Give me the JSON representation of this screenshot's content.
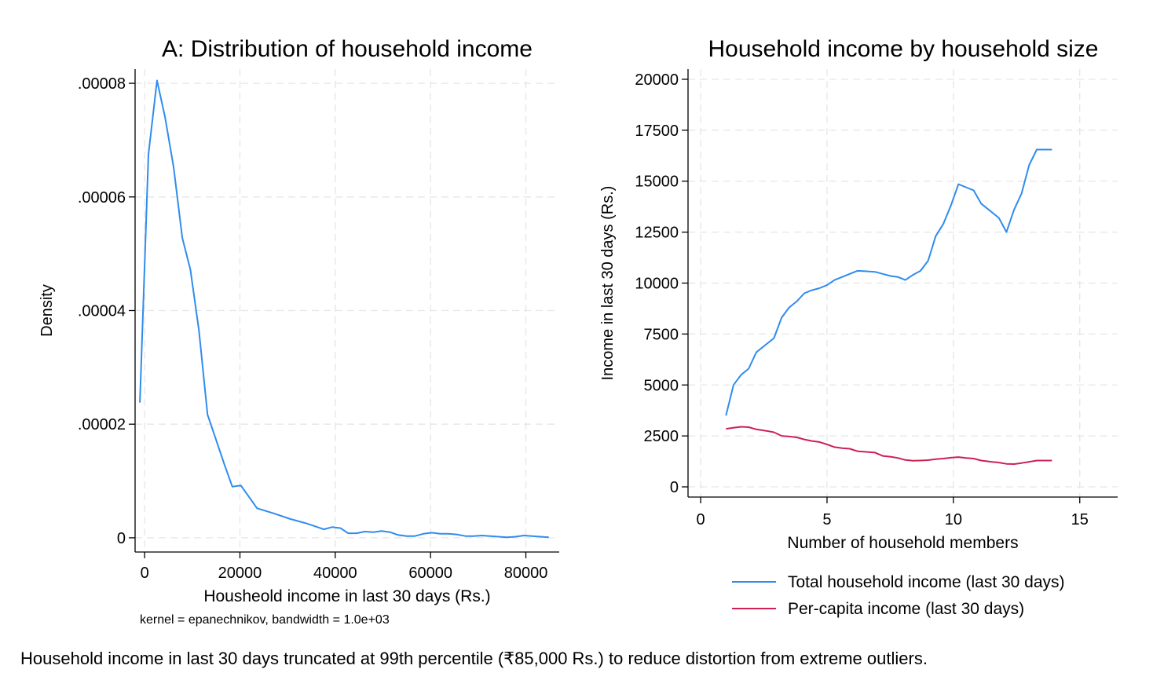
{
  "figure_note": "Household income in last 30 days truncated at 99th percentile  (₹85,000 Rs.) to reduce distortion from extreme outliers.",
  "colors": {
    "blue": "#2f8cee",
    "red": "#cc2155",
    "grid": "#e6e6e6",
    "axis": "#000000"
  },
  "chart_data": [
    {
      "type": "line",
      "title": "A: Distribution of household income",
      "xlabel": "Housheold income in last 30 days (Rs.)",
      "ylabel": "Density",
      "note": "kernel = epanechnikov, bandwidth =  1.0e+03",
      "xlim": [
        -2000,
        87000
      ],
      "ylim": [
        -2.5e-06,
        8.25e-05
      ],
      "x_ticks": [
        0,
        20000,
        40000,
        60000,
        80000
      ],
      "x_tick_labels": [
        "0",
        "20000",
        "40000",
        "60000",
        "80000"
      ],
      "y_ticks": [
        0,
        2e-05,
        4e-05,
        6e-05,
        8e-05
      ],
      "y_tick_labels": [
        "0",
        ".00002",
        ".00004",
        ".00006",
        ".00008"
      ],
      "grid": true,
      "series": [
        {
          "color": "#2f8cee",
          "x": [
            -1000,
            800,
            2600,
            4300,
            6100,
            7900,
            9600,
            11400,
            13200,
            14900,
            16700,
            18400,
            20200,
            23600,
            27100,
            30600,
            34100,
            37600,
            39400,
            41100,
            42700,
            44500,
            46200,
            48000,
            49700,
            51500,
            53200,
            55000,
            56700,
            58500,
            60300,
            62000,
            63700,
            65500,
            67300,
            69000,
            70800,
            72500,
            74300,
            76000,
            77800,
            79600,
            81300,
            83100,
            84800
          ],
          "y": [
            2.38e-05,
            6.75e-05,
            8.05e-05,
            7.4e-05,
            6.52e-05,
            5.28e-05,
            4.72e-05,
            3.65e-05,
            2.17e-05,
            1.75e-05,
            1.3e-05,
            9e-06,
            9.2e-06,
            5.2e-06,
            4.3e-06,
            3.3e-06,
            2.5e-06,
            1.5e-06,
            1.9e-06,
            1.7e-06,
            8e-07,
            8e-07,
            1.1e-06,
            1e-06,
            1.2e-06,
            1e-06,
            5e-07,
            3e-07,
            3e-07,
            7e-07,
            9e-07,
            7e-07,
            7e-07,
            6e-07,
            3e-07,
            3e-07,
            4e-07,
            3e-07,
            2e-07,
            1e-07,
            2e-07,
            4e-07,
            3e-07,
            2e-07,
            1e-07
          ]
        }
      ]
    },
    {
      "type": "line",
      "title": "Household income by household size",
      "xlabel": "Number of household members",
      "ylabel": "Income in last 30 days (Rs.)",
      "xlim": [
        -0.5,
        16.5
      ],
      "ylim": [
        -500,
        20500
      ],
      "x_ticks": [
        0,
        5,
        10,
        15
      ],
      "x_tick_labels": [
        "0",
        "5",
        "10",
        "15"
      ],
      "y_ticks": [
        0,
        2500,
        5000,
        7500,
        10000,
        12500,
        15000,
        17500,
        20000
      ],
      "y_tick_labels": [
        "0",
        "2500",
        "5000",
        "7500",
        "10000",
        "12500",
        "15000",
        "17500",
        "20000"
      ],
      "grid": true,
      "legend_position": "bottom",
      "series": [
        {
          "name": "Total household income (last 30 days)",
          "color": "#2f8cee",
          "x": [
            1,
            1.3,
            1.6,
            1.9,
            2.2,
            2.6,
            2.9,
            3.2,
            3.5,
            3.8,
            4.1,
            4.4,
            4.7,
            5,
            5.3,
            5.6,
            5.9,
            6.2,
            6.5,
            6.9,
            7.2,
            7.5,
            7.8,
            8.1,
            8.4,
            8.7,
            9,
            9.3,
            9.6,
            9.9,
            10.2,
            10.5,
            10.8,
            11.1,
            11.5,
            11.8,
            12.1,
            12.4,
            12.7,
            13,
            13.3,
            13.6,
            13.9
          ],
          "y": [
            3500,
            5000,
            5500,
            5800,
            6600,
            7000,
            7300,
            8300,
            8800,
            9100,
            9500,
            9650,
            9750,
            9900,
            10150,
            10300,
            10450,
            10600,
            10580,
            10550,
            10450,
            10350,
            10300,
            10150,
            10400,
            10600,
            11100,
            12300,
            12900,
            13800,
            14850,
            14700,
            14550,
            13900,
            13500,
            13200,
            12500,
            13600,
            14400,
            15800,
            16550,
            16550,
            16550
          ]
        },
        {
          "name": "Per-capita income (last 30 days)",
          "color": "#cc2155",
          "x": [
            1,
            1.3,
            1.6,
            1.9,
            2.2,
            2.6,
            2.9,
            3.2,
            3.5,
            3.8,
            4.1,
            4.4,
            4.7,
            5,
            5.3,
            5.6,
            5.9,
            6.2,
            6.5,
            6.9,
            7.2,
            7.5,
            7.8,
            8.1,
            8.4,
            8.7,
            9,
            9.3,
            9.6,
            9.9,
            10.2,
            10.5,
            10.8,
            11.1,
            11.5,
            11.8,
            12.1,
            12.4,
            12.7,
            13,
            13.3,
            13.6,
            13.9
          ],
          "y": [
            2850,
            2900,
            2950,
            2930,
            2820,
            2750,
            2680,
            2500,
            2470,
            2430,
            2330,
            2250,
            2200,
            2080,
            1950,
            1900,
            1870,
            1750,
            1720,
            1680,
            1520,
            1480,
            1420,
            1320,
            1280,
            1290,
            1310,
            1360,
            1390,
            1430,
            1460,
            1420,
            1390,
            1290,
            1230,
            1190,
            1130,
            1120,
            1170,
            1230,
            1290,
            1290,
            1290
          ]
        }
      ]
    }
  ]
}
